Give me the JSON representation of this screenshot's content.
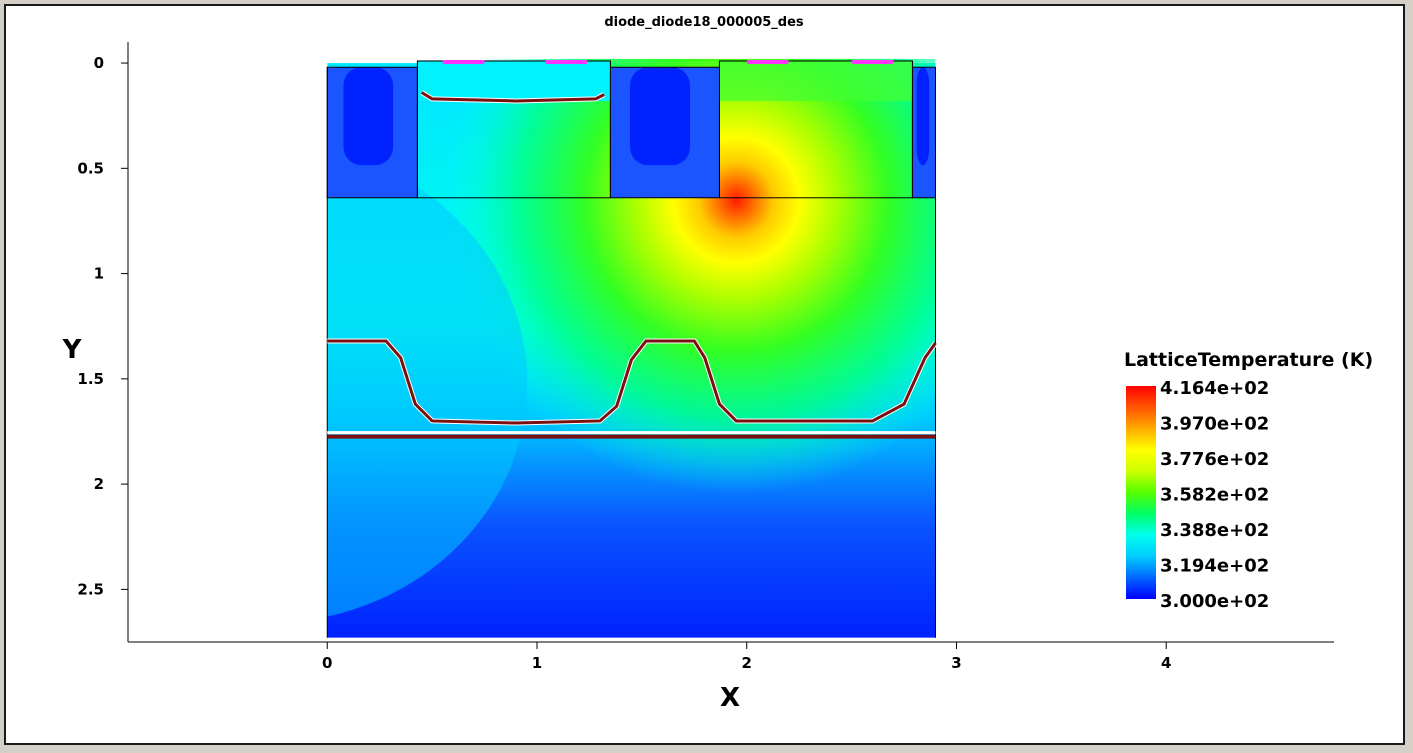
{
  "chart_data": {
    "type": "heatmap",
    "title": "diode_diode18_000005_des",
    "xlabel": "X",
    "ylabel": "Y",
    "xlim": [
      -0.95,
      4.8
    ],
    "ylim": [
      2.75,
      -0.1
    ],
    "y_inverted": true,
    "x_ticks": [
      "0",
      "1",
      "2",
      "3",
      "4"
    ],
    "y_ticks": [
      "0",
      "0.5",
      "1",
      "1.5",
      "2",
      "2.5"
    ],
    "colorbar": {
      "title": "LatticeTemperature (K)",
      "min": 300.0,
      "max": 416.4,
      "labels": [
        "4.164e+02",
        "3.970e+02",
        "3.776e+02",
        "3.582e+02",
        "3.388e+02",
        "3.194e+02",
        "3.000e+02"
      ],
      "colors": [
        "#0000ff",
        "#0066ff",
        "#00ccff",
        "#00ffee",
        "#00ff66",
        "#55ff00",
        "#ccff00",
        "#ffff00",
        "#ffaa00",
        "#ff5500",
        "#ff0000"
      ]
    },
    "domain": {
      "x": [
        0,
        2.9
      ],
      "y": [
        0,
        2.73
      ]
    },
    "hotspot": {
      "x": 1.95,
      "y": 0.65,
      "temperature": 416.4
    },
    "trenches": [
      {
        "x": [
          0,
          0.43
        ],
        "y": [
          0.02,
          0.64
        ]
      },
      {
        "x": [
          1.35,
          1.87
        ],
        "y": [
          0.02,
          0.64
        ]
      },
      {
        "x": [
          2.79,
          2.9
        ],
        "y": [
          0.02,
          0.64
        ]
      }
    ],
    "mesas": [
      {
        "x": [
          0.43,
          1.35
        ],
        "y": [
          -0.01,
          0.02
        ]
      },
      {
        "x": [
          1.87,
          2.79
        ],
        "y": [
          -0.01,
          0.02
        ]
      }
    ],
    "contacts": [
      {
        "x": [
          0.55,
          0.75
        ]
      },
      {
        "x": [
          1.04,
          1.24
        ]
      },
      {
        "x": [
          2.0,
          2.2
        ]
      },
      {
        "x": [
          2.5,
          2.7
        ]
      }
    ],
    "junction_top": [
      [
        0.45,
        0.14
      ],
      [
        0.5,
        0.17
      ],
      [
        0.9,
        0.18
      ],
      [
        1.28,
        0.17
      ],
      [
        1.32,
        0.15
      ]
    ],
    "junction_wave": [
      [
        0.0,
        1.32
      ],
      [
        0.28,
        1.32
      ],
      [
        0.35,
        1.4
      ],
      [
        0.42,
        1.62
      ],
      [
        0.5,
        1.7
      ],
      [
        0.9,
        1.71
      ],
      [
        1.3,
        1.7
      ],
      [
        1.38,
        1.63
      ],
      [
        1.45,
        1.41
      ],
      [
        1.52,
        1.32
      ],
      [
        1.75,
        1.32
      ],
      [
        1.8,
        1.4
      ],
      [
        1.87,
        1.62
      ],
      [
        1.95,
        1.7
      ],
      [
        2.6,
        1.7
      ],
      [
        2.75,
        1.62
      ],
      [
        2.85,
        1.4
      ],
      [
        2.9,
        1.33
      ]
    ],
    "junction_line_y": 1.77
  }
}
